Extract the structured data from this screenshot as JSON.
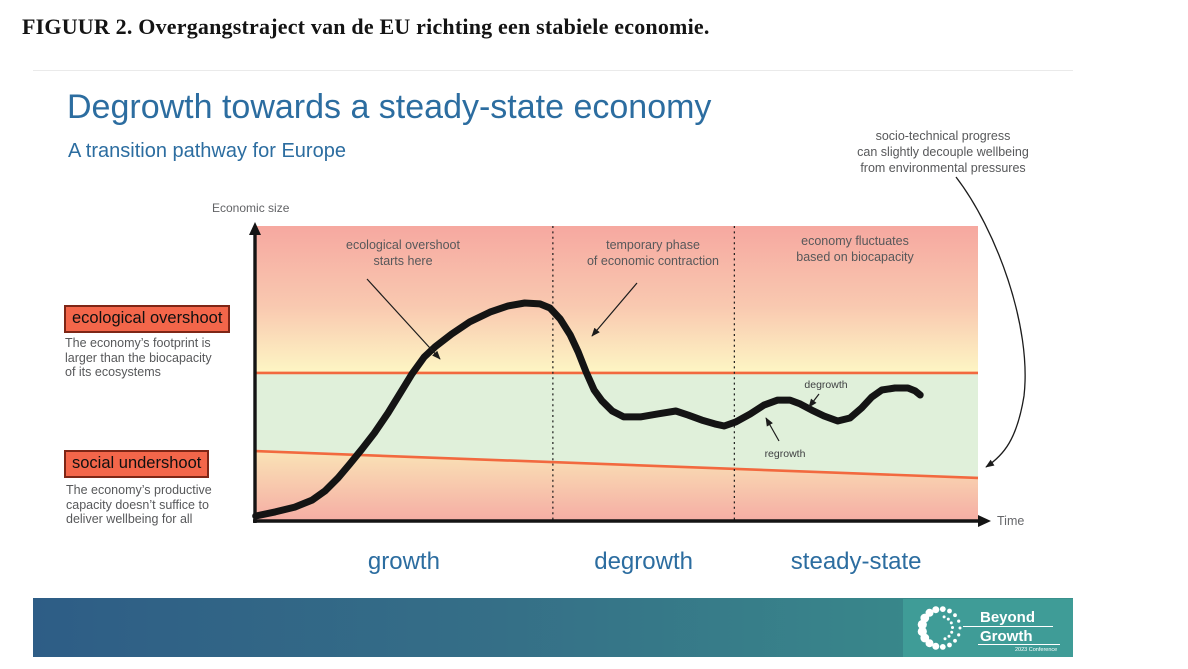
{
  "figure_caption": "FIGUUR 2. Overgangstraject van de EU richting een stabiele economie.",
  "slide": {
    "title": "Degrowth towards a steady-state economy",
    "subtitle": "A transition pathway for Europe",
    "colors": {
      "title_blue": "#2c6da0",
      "highlight_box_fill": "#f3664a",
      "highlight_box_border": "#7e2616",
      "reference_line_orange": "#f2693f",
      "curve_black": "#141414",
      "annotation_gray": "#57585a",
      "banner_gradient_left": "#2e5d86",
      "banner_gradient_right": "#3a918c",
      "logo_teal": "#3f9c97",
      "zone_overshoot_top": "#f6a8a0",
      "zone_overshoot_bottom": "#fdf6c4",
      "zone_safe_green": "#e0f0da",
      "zone_undershoot_top": "#fae3b6",
      "zone_undershoot_bottom": "#f5ada4"
    },
    "left_legend": {
      "overshoot": {
        "label": "ecological overshoot",
        "description_lines": [
          "The economy’s footprint is",
          "larger than the biocapacity",
          "of its ecosystems"
        ]
      },
      "undershoot": {
        "label": "social undershoot",
        "description_lines": [
          "The economy’s productive",
          "capacity doesn’t suffice to",
          "deliver wellbeing for all"
        ]
      }
    },
    "footer": {
      "logo": {
        "line1": "Beyond",
        "line2": "Growth",
        "tagline": "2023 Conference"
      }
    }
  },
  "chart_data": {
    "type": "line",
    "title": "Degrowth towards a steady-state economy",
    "subtitle": "A transition pathway for Europe",
    "xlabel": "Time",
    "ylabel": "Economic size",
    "grid": false,
    "axis_ticks": "none (conceptual sketch, x and y in relative % of plot area)",
    "phases": [
      {
        "label": "growth",
        "x_pct": [
          0,
          41.2
        ]
      },
      {
        "label": "degrowth",
        "x_pct": [
          41.2,
          66.3
        ]
      },
      {
        "label": "steady-state",
        "x_pct": [
          66.3,
          100
        ]
      }
    ],
    "reference_lines": [
      {
        "name": "biocapacity ceiling (ecological overshoot above)",
        "color": "#f2693f",
        "points_pct": [
          [
            0,
            50.2
          ],
          [
            100,
            50.2
          ]
        ]
      },
      {
        "name": "social foundation (social undershoot below)",
        "color": "#f2693f",
        "points_pct": [
          [
            0,
            23.7
          ],
          [
            100,
            14.6
          ]
        ]
      }
    ],
    "zones": [
      {
        "name": "ecological overshoot zone",
        "bounds": "above biocapacity ceiling",
        "fill": "pink fading down to pale yellow"
      },
      {
        "name": "safe operating space",
        "bounds": "between the two orange lines",
        "fill": "light green"
      },
      {
        "name": "social undershoot zone",
        "bounds": "below social foundation",
        "fill": "pale yellow fading down to pink"
      }
    ],
    "series": [
      {
        "name": "economic size over time",
        "color": "#141414",
        "points_pct": [
          [
            0.1,
            1.7
          ],
          [
            2.8,
            3.1
          ],
          [
            5.5,
            4.7
          ],
          [
            7.9,
            7.1
          ],
          [
            9.7,
            10.2
          ],
          [
            11.5,
            14.6
          ],
          [
            13.1,
            19.3
          ],
          [
            14.8,
            24.4
          ],
          [
            16.5,
            29.8
          ],
          [
            18.4,
            36.6
          ],
          [
            20.1,
            43.4
          ],
          [
            21.7,
            49.8
          ],
          [
            23.4,
            55.6
          ],
          [
            24.9,
            59.0
          ],
          [
            27.2,
            63.4
          ],
          [
            29.7,
            67.5
          ],
          [
            32.5,
            70.8
          ],
          [
            35.0,
            72.9
          ],
          [
            37.3,
            73.9
          ],
          [
            39.4,
            73.6
          ],
          [
            40.8,
            72.2
          ],
          [
            42.2,
            68.5
          ],
          [
            43.6,
            63.1
          ],
          [
            44.7,
            57.3
          ],
          [
            45.8,
            50.5
          ],
          [
            46.9,
            44.4
          ],
          [
            48.0,
            40.7
          ],
          [
            49.4,
            37.3
          ],
          [
            51.0,
            35.3
          ],
          [
            53.3,
            35.3
          ],
          [
            55.7,
            36.3
          ],
          [
            58.2,
            37.3
          ],
          [
            59.9,
            35.9
          ],
          [
            61.8,
            34.2
          ],
          [
            63.6,
            32.9
          ],
          [
            64.9,
            32.2
          ],
          [
            66.5,
            33.6
          ],
          [
            68.5,
            36.3
          ],
          [
            70.4,
            39.3
          ],
          [
            72.3,
            41.0
          ],
          [
            74.0,
            41.0
          ],
          [
            75.4,
            39.7
          ],
          [
            77.0,
            37.6
          ],
          [
            78.7,
            35.6
          ],
          [
            80.6,
            33.9
          ],
          [
            82.3,
            34.9
          ],
          [
            83.9,
            38.3
          ],
          [
            85.3,
            42.0
          ],
          [
            86.7,
            44.4
          ],
          [
            88.5,
            45.1
          ],
          [
            90.3,
            45.1
          ],
          [
            91.3,
            44.1
          ],
          [
            92.0,
            42.7
          ]
        ]
      }
    ],
    "annotations": {
      "overshoot_start": {
        "lines": [
          "ecological overshoot",
          "starts here"
        ]
      },
      "contraction": {
        "lines": [
          "temporary phase",
          "of economic contraction"
        ]
      },
      "fluctuates": {
        "lines": [
          "economy fluctuates",
          "based on biocapacity"
        ]
      },
      "degrowth_small": {
        "label": "degrowth"
      },
      "regrowth_small": {
        "label": "regrowth"
      },
      "decouple": {
        "lines": [
          "socio-technical progress",
          "can slightly decouple wellbeing",
          "from environmental pressures"
        ]
      }
    }
  }
}
